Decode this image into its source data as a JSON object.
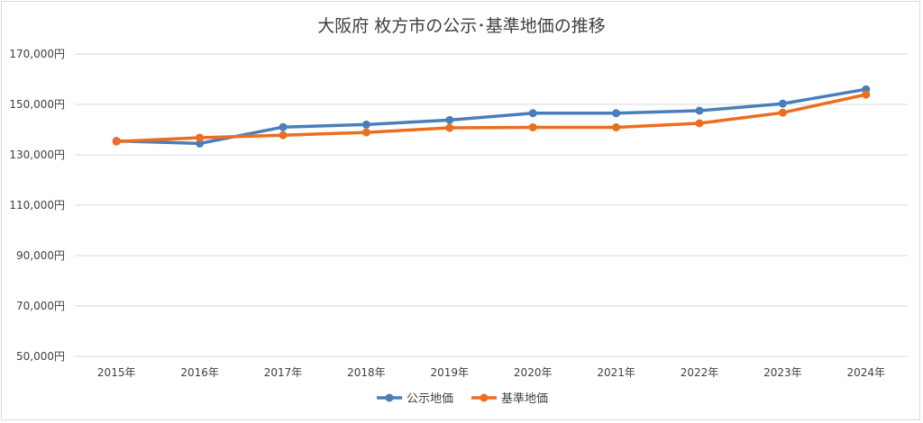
{
  "chart_data": {
    "type": "line",
    "title": "大阪府 枚方市の公示･基準地価の推移",
    "categories": [
      "2015年",
      "2016年",
      "2017年",
      "2018年",
      "2019年",
      "2020年",
      "2021年",
      "2022年",
      "2023年",
      "2024年"
    ],
    "ylim": [
      50000,
      170000
    ],
    "yticks": [
      50000,
      70000,
      90000,
      110000,
      130000,
      150000,
      170000
    ],
    "ytick_labels": [
      "50,000円",
      "70,000円",
      "90,000円",
      "110,000円",
      "130,000円",
      "150,000円",
      "170,000円"
    ],
    "grid": true,
    "legend_position": "bottom",
    "series": [
      {
        "name": "公示地価",
        "color": "#4a7ebb",
        "values": [
          135500,
          134500,
          141000,
          142000,
          143800,
          146500,
          146500,
          147500,
          150300,
          156000
        ]
      },
      {
        "name": "基準地価",
        "color": "#ed6d1f",
        "values": [
          135300,
          136800,
          137800,
          138900,
          140700,
          140900,
          140900,
          142500,
          146700,
          153900
        ]
      }
    ]
  }
}
